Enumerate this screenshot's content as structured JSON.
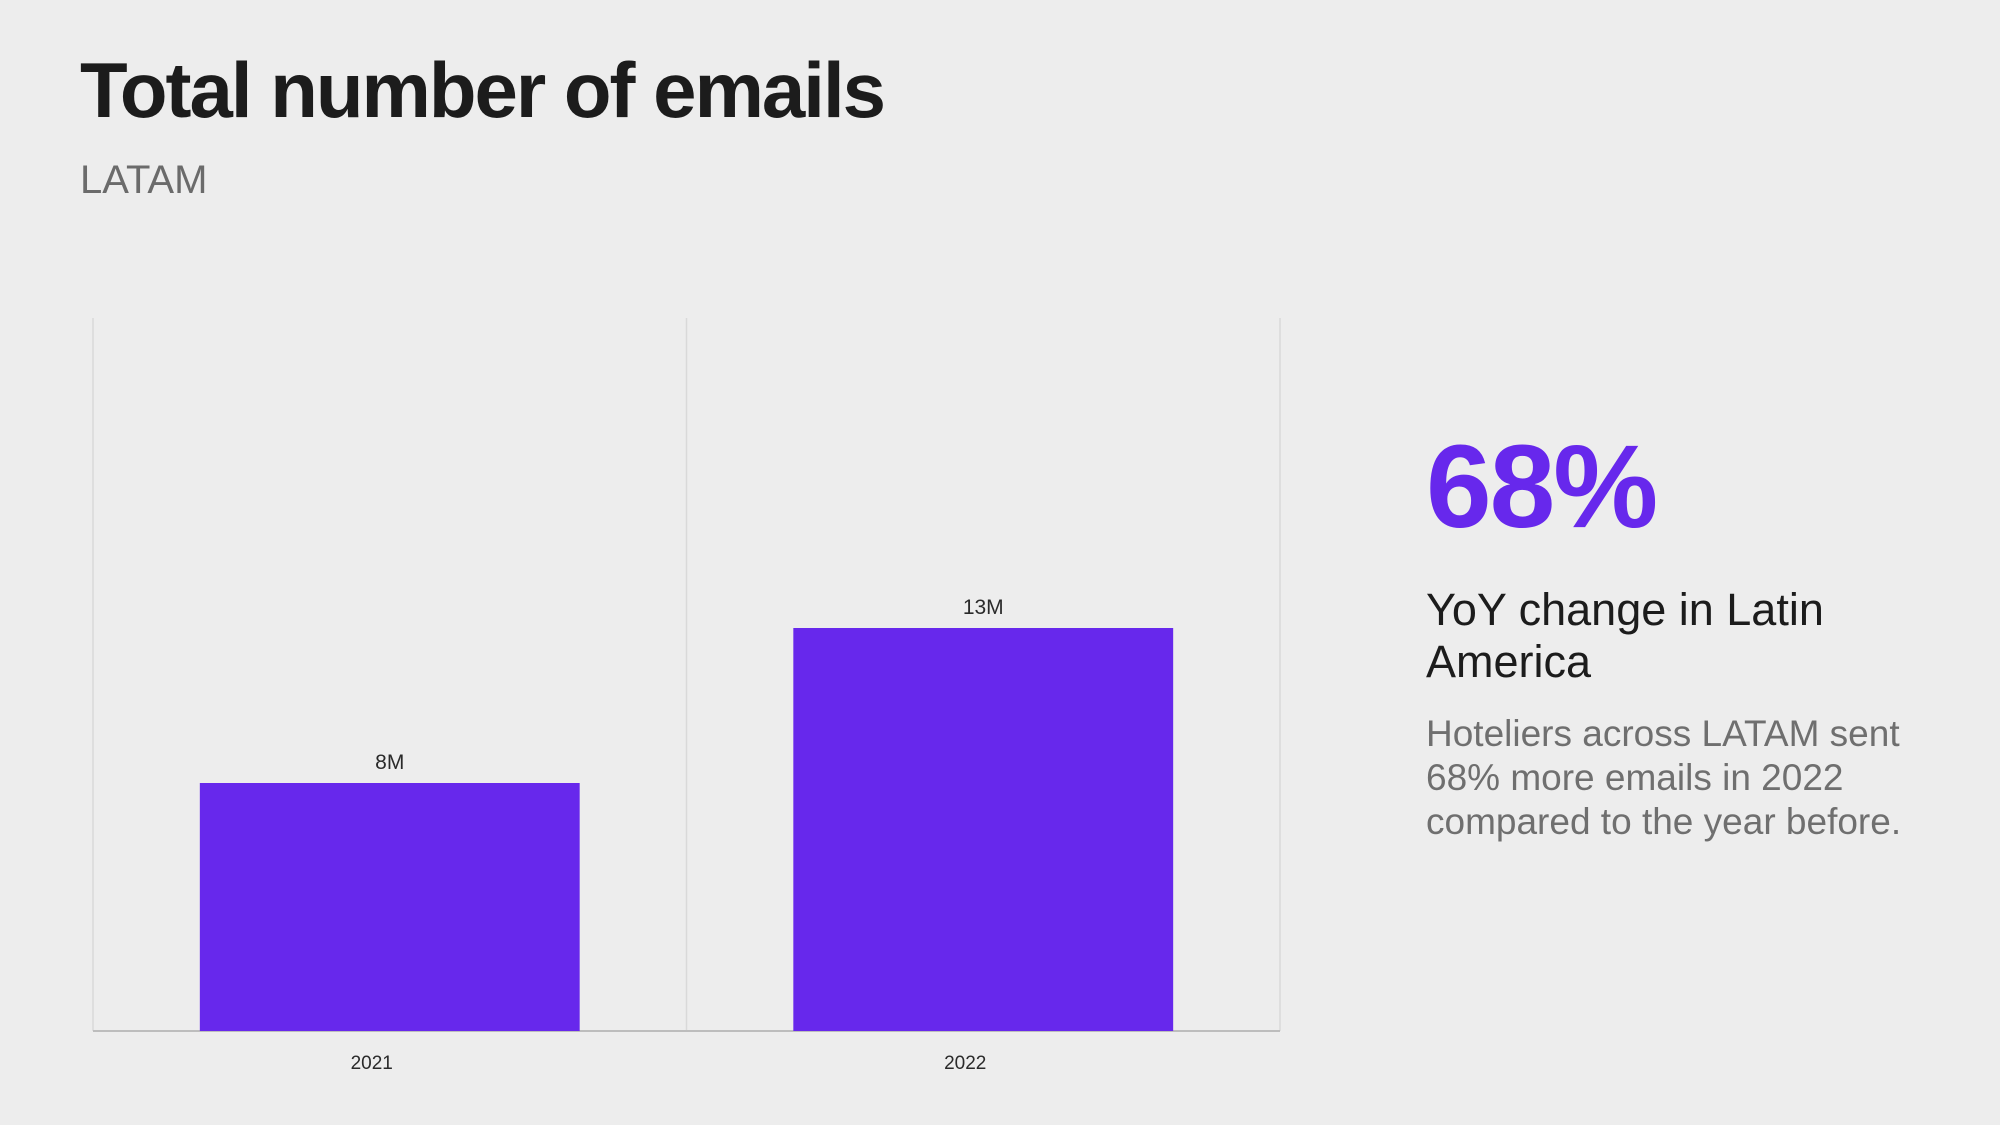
{
  "header": {
    "title": "Total number of emails",
    "subtitle": "LATAM"
  },
  "chart_data": {
    "type": "bar",
    "categories": [
      "2021",
      "2022"
    ],
    "values": [
      8,
      13
    ],
    "value_labels": [
      "8M",
      "13M"
    ],
    "unit": "M",
    "ylim": [
      0,
      23
    ],
    "grid": true,
    "legend": "none",
    "bar_color": "#6728ec"
  },
  "highlight": {
    "value": "68%",
    "label": "YoY change in Latin America",
    "description": "Hoteliers across LATAM sent 68% more emails in 2022 compared to the year before.",
    "accent_color": "#6728ec"
  }
}
